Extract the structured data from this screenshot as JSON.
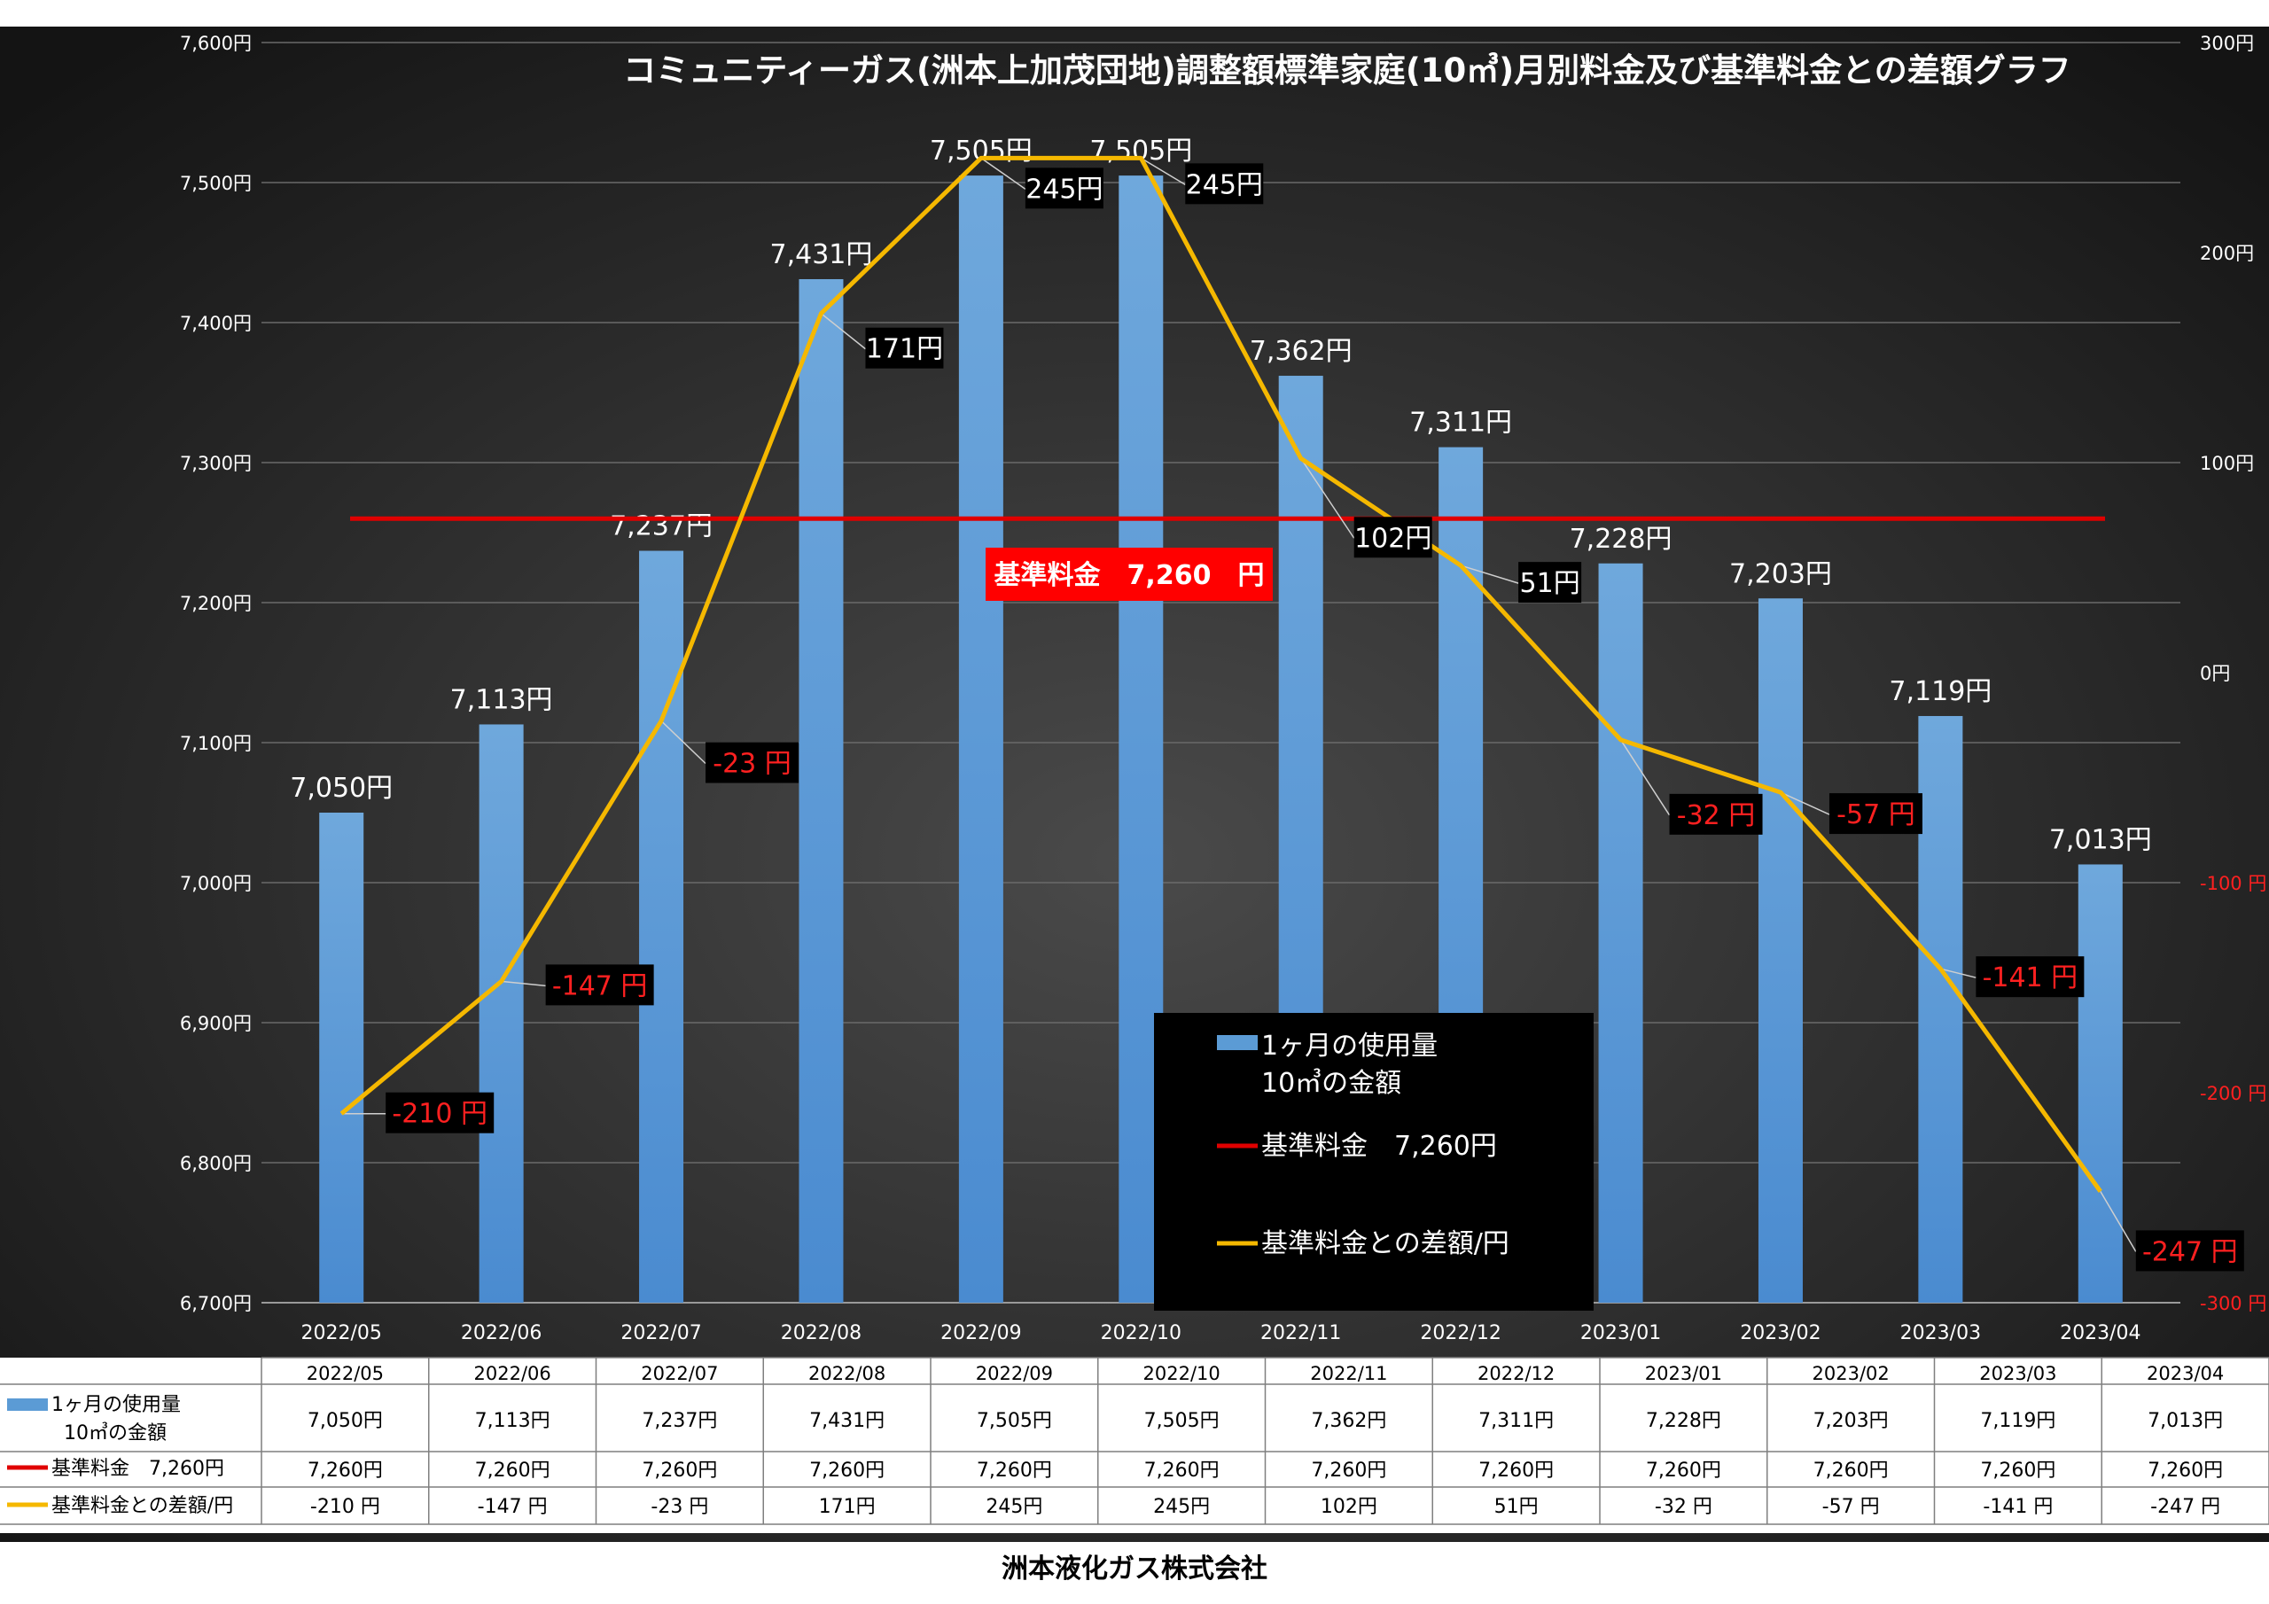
{
  "chart_data": {
    "type": "bar",
    "title": "コミュニティーガス(洲本上加茂団地)調整額標準家庭(10㎥)月別料金及び基準料金との差額グラフ",
    "categories": [
      "2022/05",
      "2022/06",
      "2022/07",
      "2022/08",
      "2022/09",
      "2022/10",
      "2022/11",
      "2022/12",
      "2023/01",
      "2023/02",
      "2023/03",
      "2023/04"
    ],
    "series": [
      {
        "name": "1ヶ月の使用量 10㎥の金額",
        "type": "bar",
        "axis": "left",
        "color": "#5b9bd5",
        "values": [
          7050,
          7113,
          7237,
          7431,
          7505,
          7505,
          7362,
          7311,
          7228,
          7203,
          7119,
          7013
        ],
        "labels": [
          "7,050円",
          "7,113円",
          "7,237円",
          "7,431円",
          "7,505円",
          "7,505円",
          "7,362円",
          "7,311円",
          "7,228円",
          "7,203円",
          "7,119円",
          "7,013円"
        ]
      },
      {
        "name": "基準料金 7,260円",
        "type": "hline",
        "axis": "left",
        "color": "#e00000",
        "values": [
          7260,
          7260,
          7260,
          7260,
          7260,
          7260,
          7260,
          7260,
          7260,
          7260,
          7260,
          7260
        ],
        "labels": [
          "7,260円",
          "7,260円",
          "7,260円",
          "7,260円",
          "7,260円",
          "7,260円",
          "7,260円",
          "7,260円",
          "7,260円",
          "7,260円",
          "7,260円",
          "7,260円"
        ]
      },
      {
        "name": "基準料金との差額/円",
        "type": "line",
        "axis": "right",
        "color": "#f5b800",
        "values": [
          -210,
          -147,
          -23,
          171,
          245,
          245,
          102,
          51,
          -32,
          -57,
          -141,
          -247
        ],
        "labels": [
          "-210 円",
          "-147 円",
          "-23 円",
          "171円",
          "245円",
          "245円",
          "102円",
          "51円",
          "-32 円",
          "-57 円",
          "-141 円",
          "-247 円"
        ]
      }
    ],
    "y_left": {
      "min": 6700,
      "max": 7600,
      "ticks": [
        "6,700円",
        "6,800円",
        "6,900円",
        "7,000円",
        "7,100円",
        "7,200円",
        "7,300円",
        "7,400円",
        "7,500円",
        "7,600円"
      ]
    },
    "y_right": {
      "min": -300,
      "max": 300,
      "ticks": [
        "-300 円",
        "-200 円",
        "-100 円",
        "0円",
        "100円",
        "200円",
        "300円"
      ]
    },
    "baseline_callout": "基準料金　7,260　円",
    "legend": {
      "placement": "bottom-center",
      "items": [
        {
          "lines": [
            "1ヶ月の使用量",
            "10㎥の金額"
          ]
        },
        {
          "lines": [
            "基準料金　7,260円"
          ]
        },
        {
          "lines": [
            "基準料金との差額/円"
          ]
        }
      ]
    },
    "table": {
      "row_labels": [
        [
          "1ヶ月の使用量",
          "10㎥の金額"
        ],
        [
          "基準料金　7,260円"
        ],
        [
          "基準料金との差額/円"
        ]
      ]
    },
    "colors": {
      "background": "#1e1e1e",
      "bar": "#5b9bd5",
      "baseline": "#e00000",
      "diff_line": "#f5b800",
      "negative_text": "#ff2020"
    }
  },
  "footer": "洲本液化ガス株式会社"
}
